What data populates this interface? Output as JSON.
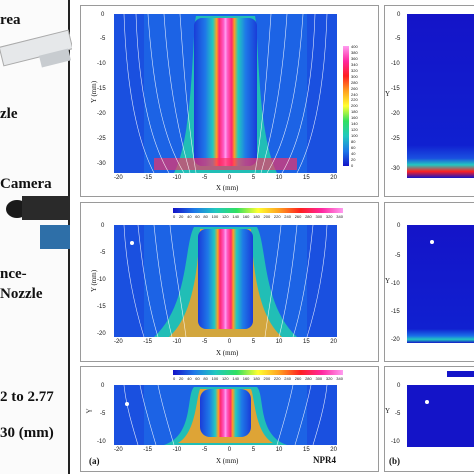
{
  "photo_panel": {
    "lines": [
      "rea",
      "zle",
      "Camera",
      "nce-",
      "Nozzle",
      "2 to 2.77",
      "30 (mm)"
    ]
  },
  "panels": {
    "top": {
      "xlabel": "X (mm)",
      "ylabel": "Y (mm)",
      "x_ticks": [
        "-20",
        "-15",
        "-10",
        "-5",
        "0",
        "5",
        "10",
        "15",
        "20"
      ],
      "y_ticks": [
        "0",
        "-5",
        "-10",
        "-15",
        "-20",
        "-25",
        "-30"
      ],
      "colorbar_ticks": [
        "400",
        "380",
        "360",
        "340",
        "320",
        "300",
        "280",
        "260",
        "240",
        "220",
        "200",
        "180",
        "160",
        "140",
        "120",
        "100",
        "80",
        "60",
        "40",
        "20",
        "0"
      ]
    },
    "middle": {
      "xlabel": "X (mm)",
      "ylabel": "Y (mm)",
      "x_ticks": [
        "-20",
        "-15",
        "-10",
        "-5",
        "0",
        "5",
        "10",
        "15",
        "20"
      ],
      "y_ticks": [
        "0",
        "-5",
        "-10",
        "-15",
        "-20"
      ],
      "colorbar_ticks": [
        "0",
        "20",
        "40",
        "60",
        "80",
        "100",
        "120",
        "140",
        "160",
        "180",
        "200",
        "220",
        "240",
        "260",
        "280",
        "300",
        "320",
        "340"
      ]
    },
    "bottom": {
      "xlabel": "X (mm)",
      "ylabel": "Y",
      "x_ticks": [
        "-20",
        "-15",
        "-10",
        "-5",
        "0",
        "5",
        "10",
        "15",
        "20"
      ],
      "y_ticks": [
        "0",
        "-5",
        "-10"
      ],
      "colorbar_ticks": [
        "0",
        "20",
        "40",
        "60",
        "80",
        "100",
        "120",
        "140",
        "160",
        "180",
        "200",
        "220",
        "240",
        "260",
        "280",
        "300",
        "320",
        "340"
      ],
      "panel_letter": "(a)",
      "case_label": "NPR4"
    },
    "right_top": {
      "y_ticks": [
        "0",
        "-5",
        "-10",
        "-15",
        "-20",
        "-25",
        "-30"
      ],
      "ylabel": "Y"
    },
    "right_middle": {
      "y_ticks": [
        "0",
        "-5",
        "-10",
        "-15",
        "-20"
      ],
      "ylabel": "Y"
    },
    "right_bottom": {
      "y_ticks": [
        "0",
        "-5",
        "-10"
      ],
      "ylabel": "Y",
      "panel_letter": "(b)"
    }
  },
  "colors": {
    "jet_low": "#1414c8",
    "jet_mid": "#22c8c0",
    "jet_high": "#ff28a0",
    "jet_peak": "#ff9cf0"
  }
}
